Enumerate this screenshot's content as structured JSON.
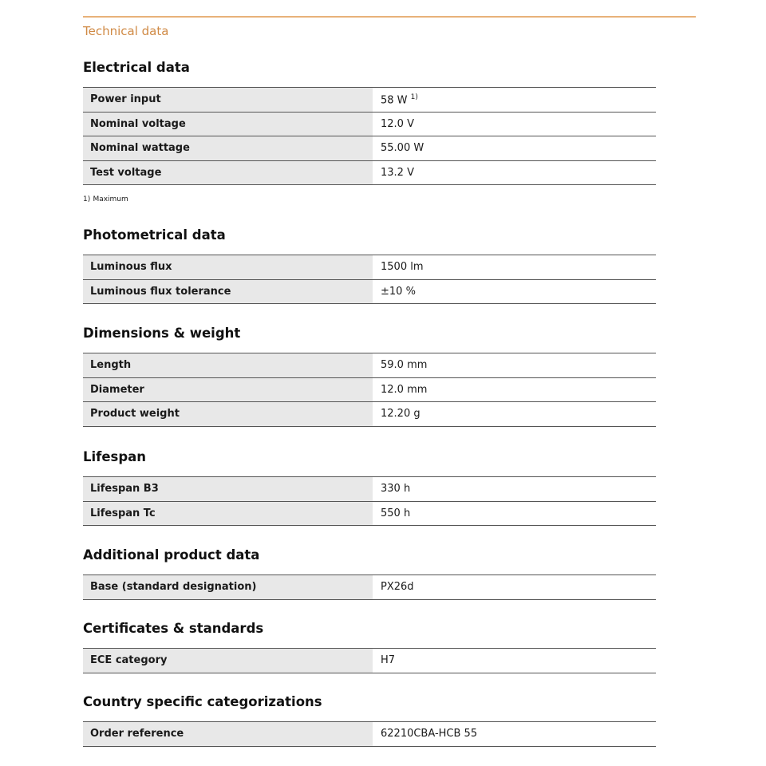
{
  "title": "Technical data",
  "sections": [
    {
      "heading": "Electrical data",
      "rows": [
        {
          "label": "Power input",
          "value": "58 W",
          "note": "1)"
        },
        {
          "label": "Nominal voltage",
          "value": "12.0 V"
        },
        {
          "label": "Nominal wattage",
          "value": "55.00 W"
        },
        {
          "label": "Test voltage",
          "value": "13.2 V"
        }
      ]
    },
    {
      "heading": "Photometrical data",
      "rows": [
        {
          "label": "Luminous flux",
          "value": "1500 lm"
        },
        {
          "label": "Luminous flux tolerance",
          "value": "±10 %"
        }
      ]
    },
    {
      "heading": "Dimensions & weight",
      "rows": [
        {
          "label": "Length",
          "value": "59.0 mm"
        },
        {
          "label": "Diameter",
          "value": "12.0 mm"
        },
        {
          "label": "Product weight",
          "value": "12.20 g"
        }
      ]
    },
    {
      "heading": "Lifespan",
      "rows": [
        {
          "label": "Lifespan B3",
          "value": "330 h"
        },
        {
          "label": "Lifespan Tc",
          "value": "550 h"
        }
      ]
    },
    {
      "heading": "Additional product data",
      "rows": [
        {
          "label": "Base (standard designation)",
          "value": "PX26d"
        }
      ]
    },
    {
      "heading": "Certificates & standards",
      "rows": [
        {
          "label": "ECE category",
          "value": "H7"
        }
      ]
    },
    {
      "heading": "Country specific categorizations",
      "rows": [
        {
          "label": "Order reference",
          "value": "62210CBA-HCB 55"
        }
      ]
    }
  ],
  "footnote": {
    "mark": "1)",
    "text": "Maximum"
  },
  "colors": {
    "accent": "#d08a45",
    "rule": "#e8b27a",
    "label_bg": "#e8e8e8"
  }
}
